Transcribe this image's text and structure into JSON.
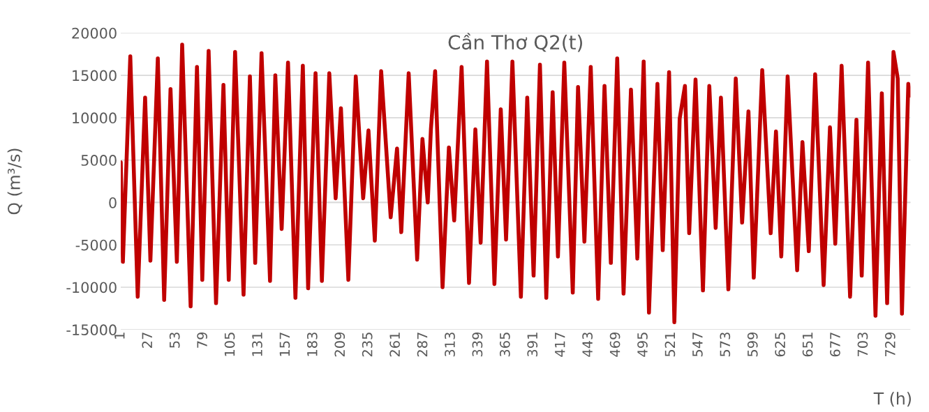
{
  "chart_data": {
    "type": "line",
    "title": "Cần Thơ Q2(t)",
    "xlabel": "T (h)",
    "ylabel": "Q (m³/s)",
    "xlim": [
      1,
      747
    ],
    "xticks": [
      1,
      27,
      53,
      79,
      105,
      131,
      157,
      183,
      209,
      235,
      261,
      287,
      313,
      339,
      365,
      391,
      417,
      443,
      469,
      495,
      521,
      547,
      573,
      599,
      625,
      651,
      677,
      703,
      729
    ],
    "ylim": [
      -15000,
      20000
    ],
    "yticks": [
      -15000,
      -10000,
      -5000,
      0,
      5000,
      10000,
      15000,
      20000
    ],
    "grid": "y",
    "marker": "none",
    "line_style": "solid",
    "series": [
      {
        "color": "#c00000",
        "x": [
          1,
          3,
          10,
          17,
          24,
          29,
          36,
          42,
          48,
          54,
          59,
          67,
          73,
          78,
          84,
          91,
          98,
          103,
          109,
          117,
          123,
          128,
          134,
          142,
          147,
          153,
          159,
          166,
          173,
          178,
          185,
          191,
          198,
          204,
          209,
          216,
          223,
          230,
          235,
          241,
          247,
          256,
          262,
          266,
          273,
          281,
          286,
          291,
          294,
          298,
          305,
          311,
          316,
          323,
          330,
          336,
          341,
          347,
          354,
          360,
          365,
          371,
          379,
          385,
          391,
          397,
          403,
          409,
          414,
          420,
          428,
          433,
          439,
          445,
          452,
          458,
          464,
          470,
          476,
          483,
          489,
          495,
          500,
          508,
          513,
          519,
          524,
          529,
          534,
          538,
          544,
          551,
          557,
          563,
          568,
          575,
          582,
          588,
          594,
          599,
          607,
          615,
          620,
          625,
          631,
          640,
          645,
          651,
          657,
          665,
          671,
          676,
          682,
          690,
          696,
          701,
          707,
          714,
          720,
          725,
          731,
          735,
          739,
          745,
          747
        ],
        "values": [
          4750,
          -7000,
          17250,
          -11125,
          12375,
          -6875,
          17000,
          -11500,
          13375,
          -7000,
          18625,
          -12250,
          16000,
          -9125,
          17875,
          -11875,
          13875,
          -9125,
          17750,
          -10875,
          14875,
          -7125,
          17625,
          -9250,
          15000,
          -3125,
          16500,
          -11250,
          16125,
          -10125,
          15250,
          -9250,
          15250,
          500,
          11125,
          -9125,
          14875,
          500,
          8500,
          -4500,
          15500,
          -1750,
          6375,
          -3500,
          15250,
          -6750,
          7500,
          0,
          8625,
          15500,
          -10000,
          6500,
          -2125,
          16000,
          -9500,
          8625,
          -4750,
          16625,
          -9625,
          11000,
          -4375,
          16625,
          -11125,
          12375,
          -8625,
          16250,
          -11250,
          13000,
          -6375,
          16500,
          -10625,
          13625,
          -4625,
          16000,
          -11375,
          13750,
          -7125,
          17000,
          -10750,
          13325,
          -6625,
          16625,
          -13000,
          14000,
          -5625,
          15375,
          -14125,
          9875,
          13750,
          -3625,
          14500,
          -10375,
          13750,
          -3000,
          12375,
          -10250,
          14625,
          -2375,
          10750,
          -8875,
          15625,
          -3625,
          8375,
          -6375,
          14875,
          -8000,
          7125,
          -5750,
          15125,
          -9750,
          8875,
          -4875,
          16125,
          -11125,
          9750,
          -8625,
          16500,
          -13375,
          12875,
          -11875,
          17750,
          14625,
          -13125,
          14000,
          12625
        ]
      }
    ]
  }
}
